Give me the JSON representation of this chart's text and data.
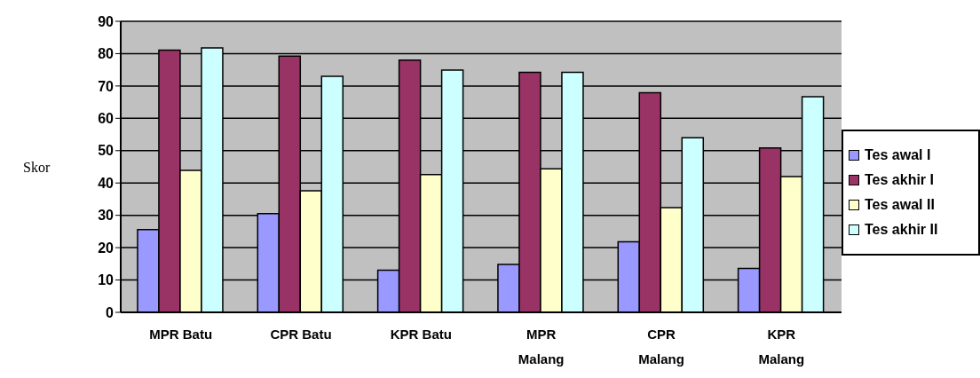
{
  "chart_data": {
    "type": "bar",
    "categories": [
      "MPR Batu",
      "CPR Batu",
      "KPR Batu",
      "MPR Malang",
      "CPR Malang",
      "KPR Malang"
    ],
    "series": [
      {
        "name": "Tes awal I",
        "color": "#9999ff",
        "values": [
          25.6,
          30.5,
          13,
          14.8,
          21.8,
          13.6
        ]
      },
      {
        "name": "Tes akhir I",
        "color": "#993366",
        "values": [
          81.1,
          79.2,
          78,
          74.2,
          67.9,
          50.8
        ]
      },
      {
        "name": "Tes awal II",
        "color": "#ffffcc",
        "values": [
          43.9,
          37.6,
          42.6,
          44.4,
          32.4,
          42
        ]
      },
      {
        "name": "Tes akhir II",
        "color": "#ccffff",
        "values": [
          81.8,
          73,
          74.9,
          74.2,
          54,
          66.7
        ]
      }
    ],
    "ylabel": "Skor",
    "ylim": [
      0,
      90
    ],
    "yticks": [
      0,
      10,
      20,
      30,
      40,
      50,
      60,
      70,
      80,
      90
    ],
    "grid": "y",
    "legend": "right"
  }
}
